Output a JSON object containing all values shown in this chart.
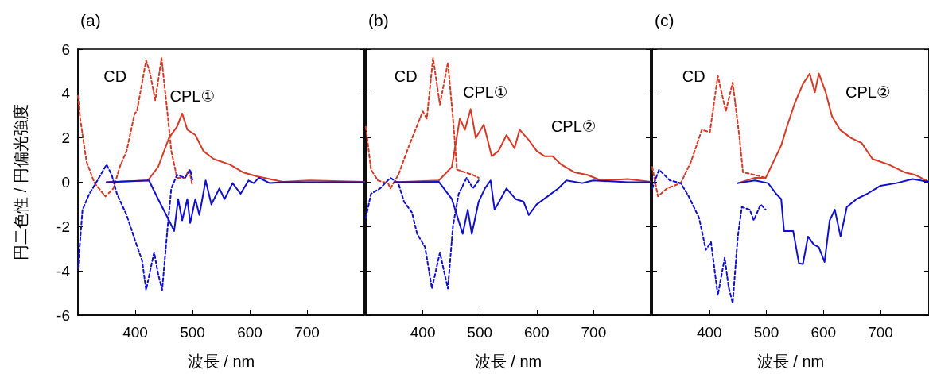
{
  "chart_data": [
    {
      "type": "line",
      "title": "(a)",
      "xlabel": "波長 / nm",
      "ylabel": "円二色性 / 円偏光強度",
      "xlim": [
        300,
        800
      ],
      "xticks": [
        400,
        500,
        600,
        700
      ],
      "ylim": [
        -6,
        6
      ],
      "yticks": [
        -6,
        -4,
        -2,
        0,
        2,
        4,
        6
      ],
      "grid": false,
      "marker": "none",
      "annotations": [
        "CD",
        "CPL①"
      ],
      "series": [
        {
          "color": "#d63a26",
          "line_style": "dashed",
          "x": [
            300,
            304,
            315,
            329,
            348,
            362,
            373,
            385,
            399,
            403,
            419,
            426,
            435,
            446,
            456,
            463,
            473,
            487,
            494,
            500
          ],
          "values": [
            3.9,
            2.86,
            0.93,
            -0.04,
            -0.64,
            -0.28,
            0.69,
            1.41,
            3.1,
            3.2,
            5.5,
            4.9,
            3.7,
            5.6,
            3.2,
            1.41,
            0.2,
            0.2,
            0.57,
            -0.16
          ]
        },
        {
          "color": "#1010cc",
          "line_style": "dashed",
          "x": [
            300,
            308,
            320,
            334,
            350,
            359,
            368,
            385,
            399,
            412,
            419,
            426,
            433,
            440,
            447,
            456,
            463,
            473,
            487,
            496,
            500
          ],
          "values": [
            -3.9,
            -1.24,
            -0.52,
            0.08,
            0.8,
            0.33,
            -0.52,
            -1.48,
            -2.57,
            -3.53,
            -4.86,
            -4.0,
            -3.17,
            -4.13,
            -4.86,
            -2.2,
            -0.28,
            0.33,
            0.2,
            0.57,
            0.08
          ]
        },
        {
          "color": "#d63a26",
          "line_style": "solid",
          "x": [
            350,
            422,
            440,
            459,
            473,
            482,
            491,
            505,
            519,
            537,
            565,
            588,
            612,
            635,
            658,
            704,
            800
          ],
          "values": [
            0,
            0.08,
            0.69,
            2.0,
            2.5,
            3.1,
            2.37,
            2.13,
            1.41,
            1.05,
            0.8,
            0.45,
            0.27,
            0.14,
            0.02,
            0.08,
            0.02
          ]
        },
        {
          "color": "#1010cc",
          "line_style": "solid",
          "x": [
            350,
            424,
            440,
            459,
            468,
            475,
            482,
            491,
            496,
            505,
            512,
            523,
            533,
            547,
            556,
            570,
            584,
            598,
            607,
            616,
            635,
            658,
            800
          ],
          "values": [
            0,
            0.08,
            -0.76,
            -1.72,
            -2.2,
            -0.76,
            -1.72,
            -0.76,
            -1.84,
            -0.76,
            -1.48,
            0.08,
            -1.0,
            -0.28,
            -0.76,
            -0.04,
            -0.52,
            0.08,
            -0.04,
            0.2,
            -0.04,
            0,
            0
          ]
        }
      ]
    },
    {
      "type": "line",
      "title": "(b)",
      "xlabel": "波長 / nm",
      "xlim": [
        300,
        800
      ],
      "xticks": [
        400,
        500,
        600,
        700
      ],
      "ylim": [
        -6,
        6
      ],
      "yticks": [
        -6,
        -4,
        -2,
        0,
        2,
        4,
        6
      ],
      "tick_labels": "x",
      "grid": false,
      "marker": "none",
      "annotations": [
        "CD",
        "CPL①",
        "CPL②"
      ],
      "series": [
        {
          "color": "#d63a26",
          "line_style": "dashed",
          "x": [
            300,
            309,
            321,
            339,
            343,
            357,
            376,
            400,
            407,
            418,
            430,
            444,
            453,
            460,
            474,
            488,
            498
          ],
          "values": [
            2.5,
            0.57,
            0.08,
            -0.04,
            -0.28,
            0.33,
            1.66,
            3.2,
            2.87,
            5.6,
            3.5,
            5.4,
            2.87,
            0.57,
            0.45,
            0.33,
            0.2
          ]
        },
        {
          "color": "#1010cc",
          "line_style": "dashed",
          "x": [
            300,
            309,
            325,
            343,
            357,
            367,
            381,
            390,
            404,
            416,
            430,
            444,
            453,
            463,
            477,
            488,
            498
          ],
          "values": [
            -1.6,
            -0.52,
            -0.28,
            0.2,
            -0.04,
            -0.88,
            -1.37,
            -2.33,
            -2.93,
            -4.8,
            -3.17,
            -4.8,
            -1.96,
            -0.52,
            0.2,
            -0.28,
            0.08
          ]
        },
        {
          "color": "#d63a26",
          "line_style": "solid",
          "x": [
            350,
            428,
            451,
            465,
            474,
            484,
            493,
            507,
            521,
            533,
            547,
            561,
            570,
            586,
            600,
            614,
            628,
            643,
            666,
            689,
            713,
            760,
            800
          ],
          "values": [
            0,
            0.08,
            0.69,
            2.87,
            2.37,
            3.3,
            2.0,
            2.6,
            1.17,
            1.41,
            2.13,
            1.53,
            2.37,
            1.9,
            1.41,
            1.17,
            1.17,
            0.8,
            0.45,
            0.33,
            0.08,
            0.14,
            0.02
          ]
        },
        {
          "color": "#1010cc",
          "line_style": "solid",
          "x": [
            350,
            428,
            451,
            470,
            479,
            486,
            498,
            509,
            519,
            526,
            547,
            563,
            577,
            586,
            600,
            619,
            638,
            652,
            680,
            699,
            760,
            800
          ],
          "values": [
            0,
            0.02,
            -0.76,
            -2.33,
            -1.24,
            -2.33,
            -0.88,
            -0.28,
            0.08,
            -1.24,
            -0.28,
            -0.76,
            -0.88,
            -1.48,
            -1.0,
            -0.64,
            -0.28,
            0.08,
            -0.04,
            0.08,
            0,
            0
          ]
        }
      ]
    },
    {
      "type": "line",
      "title": "(c)",
      "xlabel": "波長 / nm",
      "xlim": [
        300,
        785
      ],
      "xticks": [
        400,
        500,
        600,
        700
      ],
      "ylim": [
        -6,
        6
      ],
      "yticks": [
        -6,
        -4,
        -2,
        0,
        2,
        4,
        6
      ],
      "tick_labels": "x",
      "grid": false,
      "marker": "none",
      "annotations": [
        "CD",
        "CPL②"
      ],
      "series": [
        {
          "color": "#d63a26",
          "line_style": "dashed",
          "x": [
            300,
            310,
            326,
            350,
            368,
            387,
            401,
            415,
            429,
            441,
            453,
            459,
            480,
            499
          ],
          "values": [
            0.69,
            -0.64,
            -0.28,
            -0.04,
            0.93,
            2.37,
            2.25,
            4.8,
            3.2,
            4.5,
            2.0,
            0.45,
            0.33,
            0.2
          ]
        },
        {
          "color": "#1010cc",
          "line_style": "dashed",
          "x": [
            300,
            312,
            331,
            350,
            364,
            382,
            394,
            403,
            415,
            427,
            434,
            441,
            450,
            457,
            471,
            478,
            490,
            499
          ],
          "values": [
            -0.28,
            0.57,
            0.08,
            -0.04,
            -0.64,
            -1.6,
            -3.05,
            -2.7,
            -5.1,
            -3.41,
            -4.74,
            -5.45,
            -2.45,
            -1.12,
            -1.24,
            -1.72,
            -1.0,
            -1.24
          ]
        },
        {
          "color": "#d63a26",
          "line_style": "solid",
          "x": [
            450,
            480,
            499,
            517,
            526,
            536,
            550,
            564,
            576,
            585,
            592,
            604,
            615,
            629,
            648,
            667,
            686,
            714,
            742,
            761,
            785
          ],
          "values": [
            -0.04,
            0.2,
            0.2,
            1.17,
            1.66,
            2.5,
            3.58,
            4.43,
            4.9,
            4.06,
            4.9,
            4.06,
            2.97,
            2.37,
            2.0,
            1.77,
            1.05,
            0.8,
            0.45,
            0.33,
            0.02
          ]
        },
        {
          "color": "#1010cc",
          "line_style": "solid",
          "x": [
            450,
            480,
            503,
            517,
            526,
            531,
            547,
            557,
            564,
            573,
            583,
            592,
            602,
            611,
            620,
            630,
            641,
            658,
            677,
            700,
            728,
            756,
            785
          ],
          "values": [
            -0.04,
            0.08,
            -0.04,
            -0.52,
            -0.76,
            -2.2,
            -2.2,
            -3.65,
            -3.7,
            -2.45,
            -2.81,
            -2.93,
            -3.6,
            -1.72,
            -1.24,
            -2.45,
            -1.12,
            -0.76,
            -0.52,
            -0.16,
            -0.04,
            0.14,
            0.02
          ]
        }
      ]
    }
  ]
}
